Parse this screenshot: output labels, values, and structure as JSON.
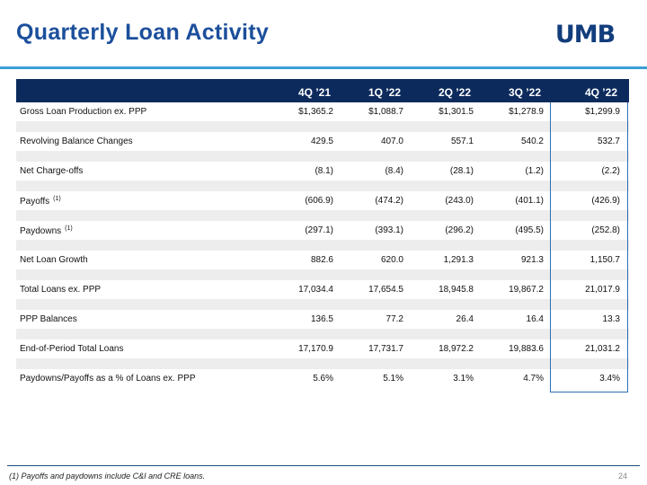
{
  "header": {
    "title": "Quarterly Loan Activity",
    "logo": "UMB"
  },
  "table": {
    "columns": [
      "4Q ’21",
      "1Q ’22",
      "2Q ’22",
      "3Q ’22",
      "4Q ’22"
    ],
    "rows": [
      {
        "label": "Gross Loan Production ex. PPP",
        "values": [
          "$1,365.2",
          "$1,088.7",
          "$1,301.5",
          "$1,278.9",
          "$1,299.9"
        ]
      },
      {
        "label": "Revolving Balance Changes",
        "values": [
          "429.5",
          "407.0",
          "557.1",
          "540.2",
          "532.7"
        ]
      },
      {
        "label": "Net Charge-offs",
        "values": [
          "(8.1)",
          "(8.4)",
          "(28.1)",
          "(1.2)",
          "(2.2)"
        ]
      },
      {
        "label": "Payoffs",
        "note": "(1)",
        "values": [
          "(606.9)",
          "(474.2)",
          "(243.0)",
          "(401.1)",
          "(426.9)"
        ]
      },
      {
        "label": "Paydowns",
        "note": "(1)",
        "values": [
          "(297.1)",
          "(393.1)",
          "(296.2)",
          "(495.5)",
          "(252.8)"
        ]
      },
      {
        "label": "Net Loan Growth",
        "values": [
          "882.6",
          "620.0",
          "1,291.3",
          "921.3",
          "1,150.7"
        ]
      },
      {
        "label": "Total Loans ex. PPP",
        "values": [
          "17,034.4",
          "17,654.5",
          "18,945.8",
          "19,867.2",
          "21,017.9"
        ]
      },
      {
        "label": "PPP Balances",
        "values": [
          "136.5",
          "77.2",
          "26.4",
          "16.4",
          "13.3"
        ]
      },
      {
        "label": "End-of-Period Total Loans",
        "values": [
          "17,170.9",
          "17,731.7",
          "18,972.2",
          "19,883.6",
          "21,031.2"
        ]
      },
      {
        "label": "Paydowns/Payoffs as a % of Loans ex. PPP",
        "values": [
          "5.6%",
          "5.1%",
          "3.1%",
          "4.7%",
          "3.4%"
        ]
      }
    ]
  },
  "footer": {
    "footnote": "(1) Payoffs and paydowns include C&I and CRE loans.",
    "page": "24"
  }
}
